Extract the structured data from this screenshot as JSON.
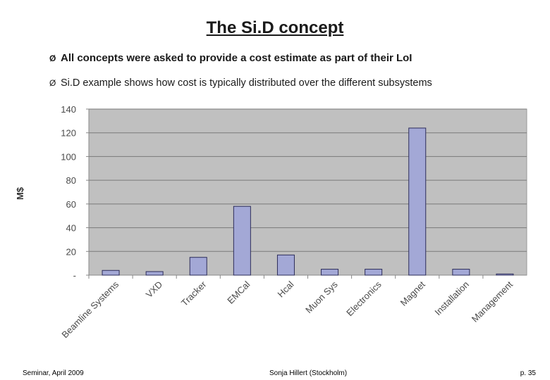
{
  "slide": {
    "title": "The Si.D concept",
    "bullets": [
      "All concepts were asked to provide a cost estimate as part of their LoI",
      "Si.D example shows how cost is typically distributed over the different subsystems"
    ],
    "bullet_marker": "Ø"
  },
  "footer": {
    "left": "Seminar, April 2009",
    "center": "Sonja Hillert (Stockholm)",
    "right": "p. 35"
  },
  "colors": {
    "plot_bg": "#c0c0c0",
    "bar_fill": "#a3a8d6",
    "bar_stroke": "#2c2c5a",
    "grid": "#7a7a7a"
  },
  "chart_data": {
    "type": "bar",
    "title": "",
    "xlabel": "",
    "ylabel": "M$",
    "ylim": [
      0,
      140
    ],
    "yticks": [
      0,
      20,
      40,
      60,
      80,
      100,
      120,
      140
    ],
    "ytick_labels": [
      "-",
      "20",
      "40",
      "60",
      "80",
      "100",
      "120",
      "140"
    ],
    "categories": [
      "Beamline Systems",
      "VXD",
      "Tracker",
      "EMCal",
      "Hcal",
      "Muon Sys",
      "Electronics",
      "Magnet",
      "Installation",
      "Management"
    ],
    "values": [
      4,
      3,
      15,
      58,
      17,
      5,
      5,
      124,
      5,
      1
    ],
    "grid": true,
    "legend": "none"
  }
}
